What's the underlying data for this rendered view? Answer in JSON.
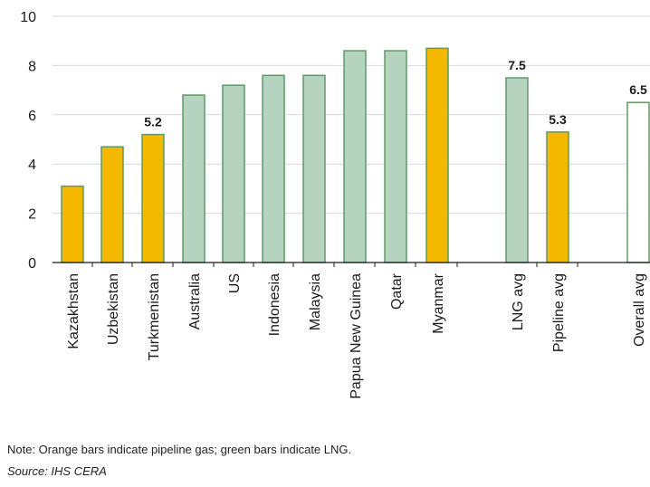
{
  "chart_data": {
    "type": "bar",
    "categories": [
      "Kazakhstan",
      "Uzbekistan",
      "Turkmenistan",
      "Australia",
      "US",
      "Indonesia",
      "Malaysia",
      "Papua New Guinea",
      "Qatar",
      "Myanmar",
      "LNG avg",
      "Pipeline avg",
      "Overall avg"
    ],
    "values": [
      3.1,
      4.7,
      5.2,
      6.8,
      7.2,
      7.6,
      7.6,
      8.6,
      8.6,
      8.7,
      7.5,
      5.3,
      6.5
    ],
    "kinds": [
      "pipeline",
      "pipeline",
      "pipeline",
      "lng",
      "lng",
      "lng",
      "lng",
      "lng",
      "lng",
      "pipeline",
      "lng",
      "pipeline",
      "overall"
    ],
    "data_labels": {
      "2": "5.2",
      "10": "7.5",
      "11": "5.3",
      "12": "6.5"
    },
    "yticks": [
      0,
      2,
      4,
      6,
      8,
      10
    ],
    "ylim": [
      0,
      10
    ],
    "grid": true,
    "title": "",
    "xlabel": "",
    "ylabel": "",
    "colors": {
      "pipeline": "#f5b800",
      "pipeline_edge": "#5e9a68",
      "lng": "#b6d3c0",
      "lng_edge": "#5e9a68",
      "overall": "#ffffff",
      "overall_edge": "#5e9a68",
      "grid": "#d8d8d8",
      "axis": "#1a1a1a"
    }
  },
  "footer": {
    "note": "Note: Orange bars indicate pipeline gas; green bars indicate LNG.",
    "source": "Source: IHS CERA"
  }
}
